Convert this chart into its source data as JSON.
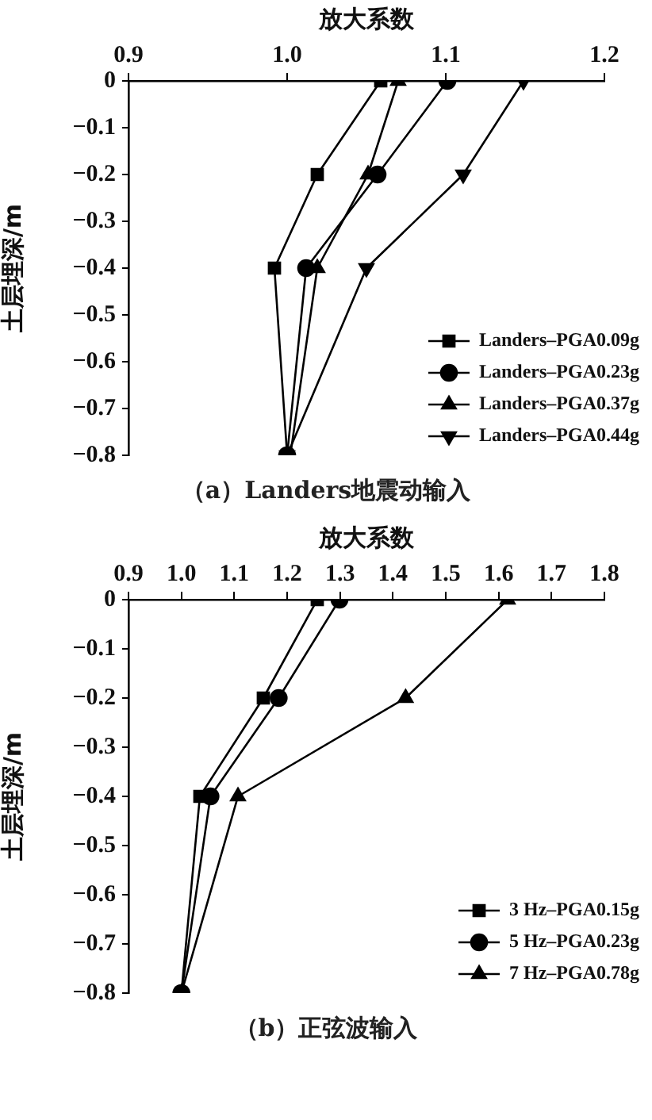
{
  "chart_data": [
    {
      "type": "line",
      "xlabel": "放大系数",
      "ylabel": "土层埋深/m",
      "xlim": [
        0.9,
        1.2
      ],
      "xticks": [
        {
          "value": 0.9,
          "label": "0.9"
        },
        {
          "value": 1.0,
          "label": "1.0"
        },
        {
          "value": 1.1,
          "label": "1.1"
        },
        {
          "value": 1.2,
          "label": "1.2"
        }
      ],
      "ylim": [
        -0.8,
        0
      ],
      "yticks": [
        -0.8,
        -0.7,
        -0.6,
        -0.5,
        -0.4,
        -0.3,
        -0.2,
        -0.1,
        0
      ],
      "legend": "bottom right",
      "line_style": "solid",
      "annotations": [
        "（a）Landers地震动输入"
      ],
      "series": [
        {
          "name": "Landers–PGA0.09g",
          "color": "#000000",
          "marker": "square",
          "x": [
            1.059,
            1.019,
            0.992,
            1.0
          ],
          "values": [
            0,
            -0.2,
            -0.4,
            -0.8
          ]
        },
        {
          "name": "Landers–PGA0.23g",
          "color": "#000000",
          "marker": "circle",
          "x": [
            1.101,
            1.057,
            1.012,
            1.0
          ],
          "values": [
            0,
            -0.2,
            -0.4,
            -0.8
          ]
        },
        {
          "name": "Landers–PGA0.37g",
          "color": "#000000",
          "marker": "triangle",
          "x": [
            1.07,
            1.051,
            1.019,
            1.002
          ],
          "values": [
            0,
            -0.2,
            -0.4,
            -0.8
          ]
        },
        {
          "name": "Landers–PGA0.44g",
          "color": "#000000",
          "marker": "triangle-down",
          "x": [
            1.149,
            1.111,
            1.05,
            1.0
          ],
          "values": [
            0,
            -0.2,
            -0.4,
            -0.8
          ]
        }
      ]
    },
    {
      "type": "line",
      "xlabel": "放大系数",
      "ylabel": "土层埋深/m",
      "xlim": [
        0.9,
        1.8
      ],
      "xticks": [
        {
          "value": 0.9,
          "label": "0.9"
        },
        {
          "value": 1.0,
          "label": "1.0"
        },
        {
          "value": 1.1,
          "label": "1.1"
        },
        {
          "value": 1.2,
          "label": "1.2"
        },
        {
          "value": 1.3,
          "label": "1.3"
        },
        {
          "value": 1.4,
          "label": "1.4"
        },
        {
          "value": 1.5,
          "label": "1.5"
        },
        {
          "value": 1.6,
          "label": "1.6"
        },
        {
          "value": 1.7,
          "label": "1.7"
        },
        {
          "value": 1.8,
          "label": "1.8"
        }
      ],
      "ylim": [
        -0.8,
        0
      ],
      "yticks": [
        -0.8,
        -0.7,
        -0.6,
        -0.5,
        -0.4,
        -0.3,
        -0.2,
        -0.1,
        0
      ],
      "legend": "bottom right",
      "line_style": "solid",
      "annotations": [
        "（b）正弦波输入"
      ],
      "series": [
        {
          "name": "3 Hz–PGA0.15g",
          "color": "#000000",
          "marker": "square",
          "x": [
            1.257,
            1.155,
            1.035,
            1.0
          ],
          "values": [
            0,
            -0.2,
            -0.4,
            -0.8
          ]
        },
        {
          "name": "5 Hz–PGA0.23g",
          "color": "#000000",
          "marker": "circle",
          "x": [
            1.299,
            1.184,
            1.055,
            1.0
          ],
          "values": [
            0,
            -0.2,
            -0.4,
            -0.8
          ]
        },
        {
          "name": "7 Hz–PGA0.78g",
          "color": "#000000",
          "marker": "triangle",
          "x": [
            1.617,
            1.424,
            1.107,
            1.0
          ],
          "values": [
            0,
            -0.2,
            -0.4,
            -0.8
          ]
        }
      ]
    }
  ]
}
